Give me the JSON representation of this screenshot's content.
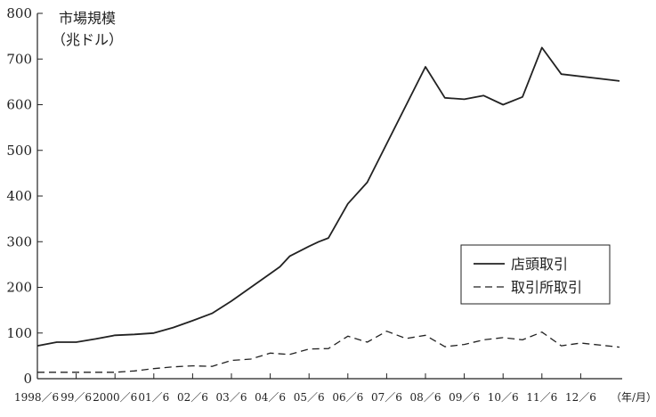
{
  "chart_data": {
    "type": "line",
    "title": "",
    "ylabel_line1": "市場規模",
    "ylabel_line2": "（兆ドル）",
    "x_unit": "（年/月）",
    "ylim": [
      0,
      800
    ],
    "y_ticks": [
      0,
      100,
      200,
      300,
      400,
      500,
      600,
      700,
      800
    ],
    "x_tick_labels": [
      "1998／6",
      "99／6",
      "2000／6",
      "01／6",
      "02／6",
      "03／6",
      "04／6",
      "05／6",
      "06／6",
      "07／6",
      "08／6",
      "09／6",
      "10／6",
      "11／6",
      "12／6"
    ],
    "grid": false,
    "legend_position": "right",
    "series": [
      {
        "name": "店頭取引",
        "style": "solid",
        "points": [
          [
            0,
            72
          ],
          [
            0.5,
            80
          ],
          [
            1,
            80
          ],
          [
            1.5,
            87
          ],
          [
            2,
            95
          ],
          [
            2.5,
            97
          ],
          [
            3,
            100
          ],
          [
            3.5,
            112
          ],
          [
            4,
            127
          ],
          [
            4.5,
            143
          ],
          [
            5,
            170
          ],
          [
            5.5,
            200
          ],
          [
            6,
            230
          ],
          [
            6.25,
            245
          ],
          [
            6.5,
            268
          ],
          [
            7,
            290
          ],
          [
            7.25,
            300
          ],
          [
            7.5,
            308
          ],
          [
            8,
            383
          ],
          [
            8.5,
            430
          ],
          [
            10,
            683
          ],
          [
            10.5,
            615
          ],
          [
            11,
            612
          ],
          [
            11.5,
            620
          ],
          [
            12,
            600
          ],
          [
            12.5,
            617
          ],
          [
            13,
            725
          ],
          [
            13.5,
            667
          ],
          [
            15,
            652
          ]
        ]
      },
      {
        "name": "取引所取引",
        "style": "dashed",
        "points": [
          [
            0,
            14
          ],
          [
            1,
            14
          ],
          [
            2,
            14
          ],
          [
            2.5,
            17
          ],
          [
            3,
            22
          ],
          [
            3.5,
            26
          ],
          [
            4,
            28
          ],
          [
            4.5,
            27
          ],
          [
            5,
            40
          ],
          [
            5.5,
            43
          ],
          [
            6,
            56
          ],
          [
            6.5,
            53
          ],
          [
            7,
            65
          ],
          [
            7.5,
            66
          ],
          [
            8,
            93
          ],
          [
            8.5,
            80
          ],
          [
            9,
            104
          ],
          [
            9.5,
            88
          ],
          [
            10,
            95
          ],
          [
            10.5,
            70
          ],
          [
            11,
            75
          ],
          [
            11.5,
            85
          ],
          [
            12,
            90
          ],
          [
            12.5,
            85
          ],
          [
            13,
            102
          ],
          [
            13.5,
            72
          ],
          [
            14,
            78
          ],
          [
            15,
            69
          ]
        ]
      }
    ]
  }
}
